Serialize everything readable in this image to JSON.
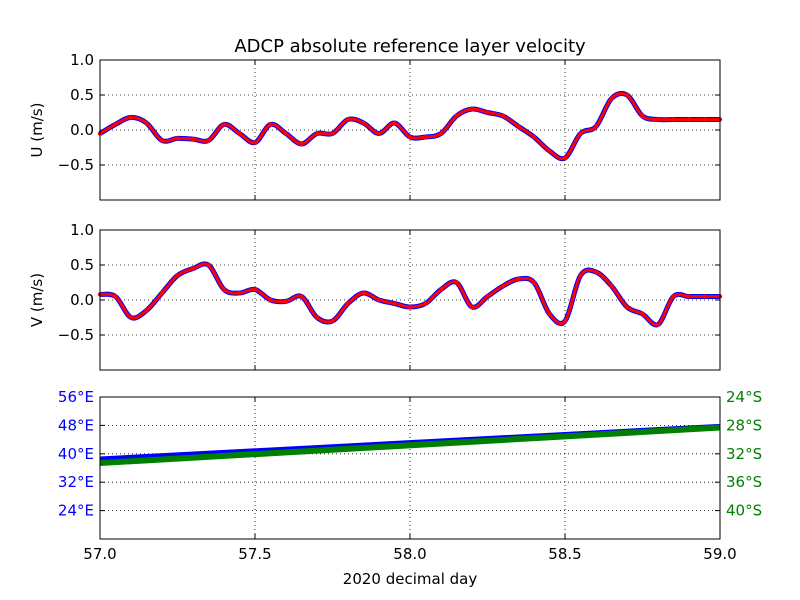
{
  "figure": {
    "title": "ADCP absolute reference layer velocity",
    "xlabel": "2020 decimal day"
  },
  "chart_data": [
    {
      "type": "line",
      "panel": "u-velocity",
      "ylabel": "U (m/s)",
      "xlim": [
        57.0,
        59.0
      ],
      "ylim": [
        -1.0,
        1.0
      ],
      "yticks": [
        "",
        "−0.5",
        "0.0",
        "0.5",
        "1.0"
      ],
      "ytick_values": [
        -1.0,
        -0.5,
        0.0,
        0.5,
        1.0
      ],
      "grid": true,
      "series": [
        {
          "color": "#ff0000",
          "marker_color": "#0000ff",
          "x": [
            57.0,
            57.05,
            57.1,
            57.15,
            57.2,
            57.25,
            57.3,
            57.35,
            57.4,
            57.45,
            57.5,
            57.55,
            57.6,
            57.65,
            57.7,
            57.75,
            57.8,
            57.85,
            57.9,
            57.95,
            58.0,
            58.05,
            58.1,
            58.15,
            58.2,
            58.25,
            58.3,
            58.35,
            58.4,
            58.45,
            58.5,
            58.55,
            58.6,
            58.65,
            58.7,
            58.75,
            58.8,
            58.85,
            58.9,
            58.95,
            59.0
          ],
          "y": [
            -0.05,
            0.08,
            0.18,
            0.1,
            -0.15,
            -0.12,
            -0.13,
            -0.15,
            0.08,
            -0.05,
            -0.18,
            0.08,
            -0.05,
            -0.2,
            -0.05,
            -0.05,
            0.15,
            0.1,
            -0.05,
            0.1,
            -0.1,
            -0.1,
            -0.05,
            0.2,
            0.3,
            0.25,
            0.2,
            0.05,
            -0.1,
            -0.3,
            -0.4,
            -0.05,
            0.05,
            0.45,
            0.5,
            0.2,
            0.15,
            0.15,
            0.15,
            0.15,
            0.15
          ]
        }
      ]
    },
    {
      "type": "line",
      "panel": "v-velocity",
      "ylabel": "V (m/s)",
      "xlim": [
        57.0,
        59.0
      ],
      "ylim": [
        -1.0,
        1.0
      ],
      "yticks": [
        "",
        "−0.5",
        "0.0",
        "0.5",
        "1.0"
      ],
      "ytick_values": [
        -1.0,
        -0.5,
        0.0,
        0.5,
        1.0
      ],
      "grid": true,
      "series": [
        {
          "color": "#ff0000",
          "marker_color": "#0000ff",
          "x": [
            57.0,
            57.05,
            57.1,
            57.15,
            57.2,
            57.25,
            57.3,
            57.35,
            57.4,
            57.45,
            57.5,
            57.55,
            57.6,
            57.65,
            57.7,
            57.75,
            57.8,
            57.85,
            57.9,
            57.95,
            58.0,
            58.05,
            58.1,
            58.15,
            58.2,
            58.25,
            58.3,
            58.35,
            58.4,
            58.45,
            58.5,
            58.55,
            58.6,
            58.65,
            58.7,
            58.75,
            58.8,
            58.85,
            58.9,
            58.95,
            59.0
          ],
          "y": [
            0.08,
            0.05,
            -0.25,
            -0.15,
            0.1,
            0.35,
            0.45,
            0.5,
            0.15,
            0.1,
            0.15,
            0.0,
            -0.02,
            0.05,
            -0.25,
            -0.3,
            -0.05,
            0.1,
            0.0,
            -0.05,
            -0.1,
            -0.05,
            0.15,
            0.25,
            -0.1,
            0.05,
            0.2,
            0.3,
            0.25,
            -0.2,
            -0.3,
            0.35,
            0.4,
            0.2,
            -0.1,
            -0.2,
            -0.35,
            0.05,
            0.05,
            0.05,
            0.05
          ]
        }
      ]
    },
    {
      "type": "line",
      "panel": "position",
      "xlim": [
        57.0,
        59.0
      ],
      "xticks": [
        "57.0",
        "57.5",
        "58.0",
        "58.5",
        "59.0"
      ],
      "xtick_values": [
        57.0,
        57.5,
        58.0,
        58.5,
        59.0
      ],
      "grid": true,
      "left_axis": {
        "color": "#0000ff",
        "ylim": [
          16,
          56
        ],
        "yticks": [
          "24°E",
          "32°E",
          "40°E",
          "48°E",
          "56°E"
        ],
        "ytick_values": [
          24,
          32,
          40,
          48,
          56
        ]
      },
      "right_axis": {
        "color": "#008000",
        "ylim": [
          -44,
          -24
        ],
        "yticks": [
          "24°S",
          "28°S",
          "32°S",
          "36°S",
          "40°S"
        ],
        "ytick_values": [
          -24,
          -28,
          -32,
          -36,
          -40
        ]
      },
      "series": [
        {
          "axis": "left",
          "color": "#0000ff",
          "x": [
            57.0,
            59.0
          ],
          "y": [
            38.4,
            47.6
          ]
        },
        {
          "axis": "right",
          "color": "#008000",
          "x": [
            57.0,
            59.0
          ],
          "y": [
            -33.3,
            -28.3
          ]
        }
      ]
    }
  ]
}
